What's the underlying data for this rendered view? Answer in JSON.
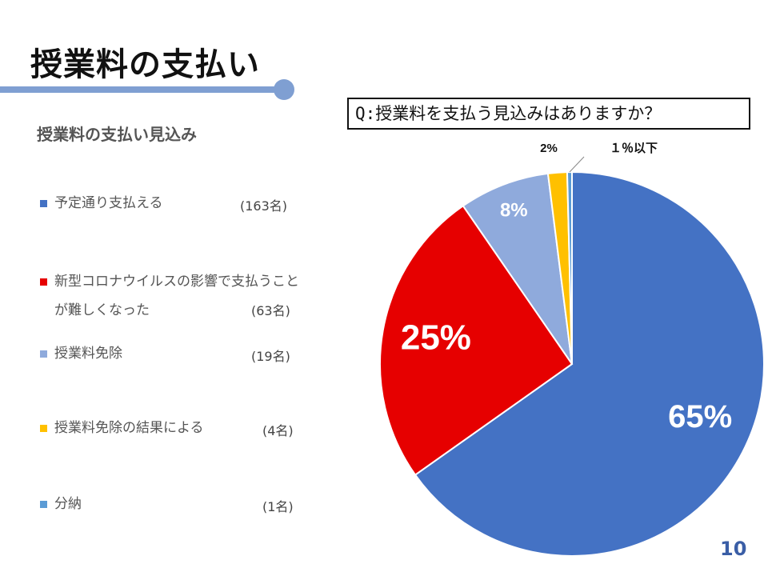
{
  "slide": {
    "title": "授業料の支払い",
    "question": "Q:授業料を支払う見込みはありますか？",
    "page_number": "10"
  },
  "legend": {
    "title": "授業料の支払い見込み",
    "items": [
      {
        "label": "予定通り支払える",
        "count": "(163名)",
        "color": "#4472c4"
      },
      {
        "label": "新型コロナウイルスの影響で支払うことが難しくなった",
        "count": "(63名)",
        "color": "#e60000"
      },
      {
        "label": "授業料免除",
        "count": "(19名)",
        "color": "#8faadc"
      },
      {
        "label": "授業料免除の結果による",
        "count": "(4名)",
        "color": "#ffc000"
      },
      {
        "label": "分納",
        "count": "(1名)",
        "color": "#5b9bd5"
      }
    ]
  },
  "chart_data": {
    "type": "pie",
    "categories": [
      "予定通り支払える",
      "新型コロナウイルスの影響で支払うことが難しくなった",
      "授業料免除",
      "授業料免除の結果による",
      "分納"
    ],
    "values": [
      163,
      63,
      19,
      4,
      1
    ],
    "data_labels": [
      "65%",
      "25%",
      "8%",
      "2%",
      "１％以下"
    ],
    "colors": [
      "#4472c4",
      "#e60000",
      "#8faadc",
      "#ffc000",
      "#5b9bd5"
    ],
    "start_angle_deg": 0,
    "direction": "clockwise"
  }
}
